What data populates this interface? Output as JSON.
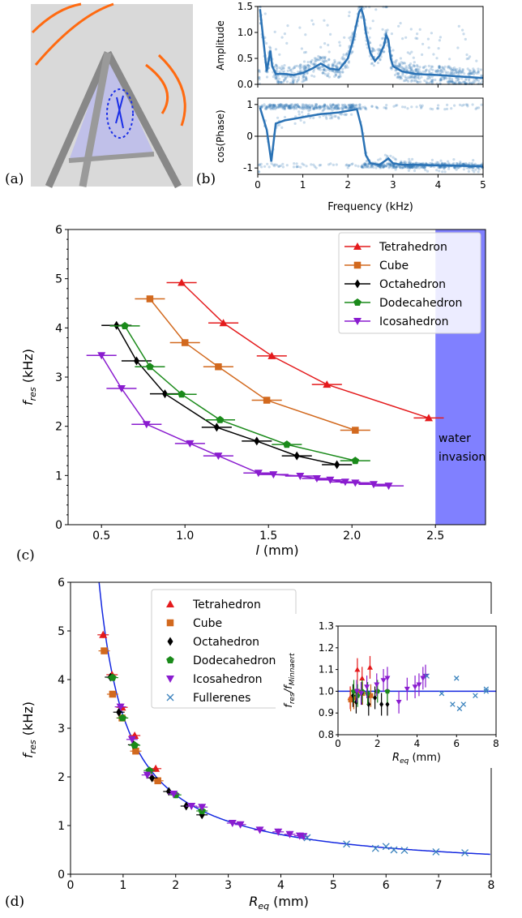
{
  "panel_labels": {
    "a": "(a)",
    "b": "(b)",
    "c": "(c)",
    "d": "(d)"
  },
  "colors": {
    "tetrahedron": "#e41a1c",
    "cube": "#d2691e",
    "octahedron": "#000000",
    "dodecahedron": "#1a8a1a",
    "icosahedron": "#8a1ccf",
    "fullerenes": "#3b83bd",
    "fit": "#1428e0",
    "water_band": "#8080ff",
    "fft_points": "#2a72b5"
  },
  "chart_data": [
    {
      "id": "b-top",
      "type": "scatter",
      "xlabel": "",
      "ylabel": "Amplitude",
      "xlim": [
        0,
        5
      ],
      "ylim": [
        0,
        1.5
      ],
      "yticks": [
        "0.0",
        "0.5",
        "1.0",
        "1.5"
      ],
      "xticks": [
        "0",
        "1",
        "2",
        "3",
        "4",
        "5"
      ],
      "series": [
        {
          "values_x": [
            0.05,
            0.2,
            0.28,
            0.32,
            0.4,
            0.6,
            0.8,
            1.0,
            1.2,
            1.3,
            1.4,
            1.5,
            1.6,
            1.8,
            2.0,
            2.1,
            2.2,
            2.25,
            2.3,
            2.35,
            2.4,
            2.5,
            2.6,
            2.7,
            2.8,
            2.85,
            2.9,
            2.95,
            3.0,
            3.2,
            3.5,
            4.0,
            4.5,
            5.0
          ],
          "values_y": [
            1.45,
            0.25,
            0.65,
            0.35,
            0.2,
            0.2,
            0.18,
            0.22,
            0.3,
            0.35,
            0.4,
            0.35,
            0.3,
            0.28,
            0.5,
            0.8,
            1.2,
            1.4,
            1.45,
            1.3,
            1.0,
            0.6,
            0.45,
            0.55,
            0.75,
            0.95,
            0.85,
            0.5,
            0.35,
            0.25,
            0.2,
            0.18,
            0.15,
            0.12
          ]
        }
      ]
    },
    {
      "id": "b-bottom",
      "type": "scatter",
      "xlabel": "Frequency (kHz)",
      "ylabel": "cos(Phase)",
      "xlim": [
        0,
        5
      ],
      "ylim": [
        -1.2,
        1.2
      ],
      "yticks": [
        "-1",
        "0",
        "1"
      ],
      "xticks": [
        "0",
        "1",
        "2",
        "3",
        "4",
        "5"
      ],
      "series": [
        {
          "values_x": [
            0.05,
            0.2,
            0.3,
            0.4,
            0.6,
            0.8,
            1.0,
            1.2,
            1.4,
            1.6,
            1.8,
            2.0,
            2.2,
            2.3,
            2.4,
            2.5,
            2.7,
            2.9,
            3.0,
            3.2,
            3.5,
            4.0,
            4.5,
            5.0
          ],
          "values_y": [
            0.9,
            0.2,
            -0.8,
            0.4,
            0.5,
            0.55,
            0.6,
            0.65,
            0.7,
            0.72,
            0.75,
            0.8,
            0.85,
            0.3,
            -0.6,
            -0.85,
            -0.9,
            -0.7,
            -0.85,
            -0.9,
            -0.9,
            -0.92,
            -0.93,
            -0.95
          ]
        }
      ]
    },
    {
      "id": "c",
      "type": "line",
      "xlabel": "l (mm)",
      "ylabel": "f_res (kHz)",
      "xlim": [
        0.3,
        2.8
      ],
      "ylim": [
        0,
        6
      ],
      "xticks": [
        0.5,
        1.0,
        1.5,
        2.0,
        2.5
      ],
      "xtick_labels": [
        "0.5",
        "1.0",
        "1.5",
        "2.0",
        "2.5"
      ],
      "yticks": [
        0,
        1,
        2,
        3,
        4,
        5,
        6
      ],
      "band": {
        "x_from": 2.5,
        "x_to": 2.8,
        "label_line1": "water",
        "label_line2": "invasion"
      },
      "legend_position": "top-right",
      "series": [
        {
          "name": "Tetrahedron",
          "marker": "triangle-up",
          "color_key": "tetrahedron",
          "x": [
            0.98,
            1.23,
            1.52,
            1.85,
            2.46
          ],
          "y": [
            4.92,
            4.1,
            3.43,
            2.85,
            2.17
          ],
          "xerr": 0.09
        },
        {
          "name": "Cube",
          "marker": "square",
          "color_key": "cube",
          "x": [
            0.79,
            1.0,
            1.2,
            1.49,
            2.02
          ],
          "y": [
            4.59,
            3.7,
            3.21,
            2.53,
            1.92
          ],
          "xerr": 0.09
        },
        {
          "name": "Octahedron",
          "marker": "diamond",
          "color_key": "octahedron",
          "x": [
            0.59,
            0.71,
            0.88,
            1.19,
            1.43,
            1.67,
            1.91
          ],
          "y": [
            4.05,
            3.33,
            2.66,
            1.98,
            1.7,
            1.4,
            1.22
          ],
          "xerr": 0.09
        },
        {
          "name": "Dodecahedron",
          "marker": "pentagon",
          "color_key": "dodecahedron",
          "x": [
            0.64,
            0.79,
            0.98,
            1.21,
            1.61,
            2.02
          ],
          "y": [
            4.04,
            3.21,
            2.65,
            2.13,
            1.63,
            1.3
          ],
          "xerr": 0.09
        },
        {
          "name": "Icosahedron",
          "marker": "triangle-down",
          "color_key": "icosahedron",
          "x": [
            0.5,
            0.62,
            0.77,
            1.03,
            1.2,
            1.44,
            1.53,
            1.69,
            1.79,
            1.87,
            1.96,
            2.02,
            2.13,
            2.22
          ],
          "y": [
            3.44,
            2.77,
            2.04,
            1.65,
            1.4,
            1.05,
            1.02,
            0.99,
            0.94,
            0.91,
            0.87,
            0.85,
            0.82,
            0.79
          ],
          "xerr": 0.09
        }
      ]
    },
    {
      "id": "d",
      "type": "scatter",
      "xlabel": "R_eq (mm)",
      "ylabel": "f_res (kHz)",
      "xlim": [
        0,
        8
      ],
      "ylim": [
        0,
        6
      ],
      "xticks": [
        0,
        1,
        2,
        3,
        4,
        5,
        6,
        7,
        8
      ],
      "yticks": [
        0,
        1,
        2,
        3,
        4,
        5,
        6
      ],
      "fit": {
        "type": "minnaert",
        "k": 3.26
      },
      "legend_position": "top-left",
      "series": [
        {
          "name": "Tetrahedron",
          "marker": "triangle-up",
          "color_key": "tetrahedron",
          "x": [
            0.62,
            0.79,
            0.98,
            1.22,
            1.62
          ],
          "y": [
            4.92,
            4.1,
            3.43,
            2.85,
            2.17
          ]
        },
        {
          "name": "Cube",
          "marker": "square",
          "color_key": "cube",
          "x": [
            0.64,
            0.8,
            0.98,
            1.24,
            1.66
          ],
          "y": [
            4.59,
            3.7,
            3.21,
            2.53,
            1.92
          ]
        },
        {
          "name": "Octahedron",
          "marker": "diamond",
          "color_key": "octahedron",
          "x": [
            0.76,
            0.92,
            1.2,
            1.55,
            1.87,
            2.2,
            2.5
          ],
          "y": [
            4.05,
            3.33,
            2.66,
            1.98,
            1.7,
            1.4,
            1.22
          ]
        },
        {
          "name": "Dodecahedron",
          "marker": "pentagon",
          "color_key": "dodecahedron",
          "x": [
            0.8,
            0.99,
            1.22,
            1.5,
            2.0,
            2.5
          ],
          "y": [
            4.04,
            3.21,
            2.65,
            2.13,
            1.63,
            1.3
          ]
        },
        {
          "name": "Icosahedron",
          "marker": "triangle-down",
          "color_key": "icosahedron",
          "x": [
            0.95,
            1.17,
            1.46,
            1.96,
            2.3,
            2.5,
            3.08,
            3.23,
            3.6,
            3.95,
            4.17,
            4.36,
            4.43
          ],
          "y": [
            3.44,
            2.77,
            2.04,
            1.65,
            1.4,
            1.38,
            1.05,
            1.02,
            0.91,
            0.87,
            0.82,
            0.79,
            0.78
          ]
        },
        {
          "name": "Fullerenes",
          "marker": "x",
          "color_key": "fullerenes",
          "x": [
            4.5,
            5.25,
            5.8,
            6.0,
            6.15,
            6.35,
            6.95,
            7.5
          ],
          "y": [
            0.75,
            0.62,
            0.53,
            0.57,
            0.5,
            0.49,
            0.46,
            0.44
          ]
        }
      ]
    },
    {
      "id": "d-inset",
      "type": "scatter",
      "xlabel": "R_eq (mm)",
      "ylabel": "f_res/f_Minnaert",
      "xlim": [
        0,
        8
      ],
      "ylim": [
        0.8,
        1.3
      ],
      "xticks": [
        0,
        2,
        4,
        6,
        8
      ],
      "yticks": [
        "0.8",
        "0.9",
        "1.0",
        "1.1",
        "1.2",
        "1.3"
      ],
      "reference_line": 1.0,
      "series": [
        {
          "name": "Tetrahedron",
          "marker": "triangle-up",
          "color_key": "tetrahedron",
          "x": [
            0.62,
            0.79,
            0.98,
            1.22,
            1.62
          ],
          "y": [
            0.97,
            0.98,
            1.1,
            1.06,
            1.11
          ]
        },
        {
          "name": "Cube",
          "marker": "square",
          "color_key": "cube",
          "x": [
            0.64,
            0.8,
            0.98,
            1.24,
            1.66
          ],
          "y": [
            0.96,
            0.97,
            1.0,
            0.99,
            0.98
          ]
        },
        {
          "name": "Octahedron",
          "marker": "diamond",
          "color_key": "octahedron",
          "x": [
            0.76,
            0.92,
            1.2,
            1.55,
            1.87,
            2.2,
            2.5
          ],
          "y": [
            0.98,
            0.95,
            0.99,
            0.94,
            0.97,
            0.94,
            0.94
          ]
        },
        {
          "name": "Dodecahedron",
          "marker": "pentagon",
          "color_key": "dodecahedron",
          "x": [
            0.8,
            0.99,
            1.22,
            1.5,
            2.0,
            2.5
          ],
          "y": [
            1.0,
            0.98,
            1.0,
            0.99,
            1.0,
            1.0
          ]
        },
        {
          "name": "Icosahedron",
          "marker": "triangle-down",
          "color_key": "icosahedron",
          "x": [
            0.95,
            1.17,
            1.46,
            1.96,
            2.3,
            2.5,
            3.08,
            3.5,
            3.9,
            4.1,
            4.3,
            4.43
          ],
          "y": [
            1.0,
            0.99,
            1.02,
            1.03,
            1.05,
            1.06,
            0.95,
            1.01,
            1.02,
            1.03,
            1.06,
            1.07
          ]
        },
        {
          "name": "Fullerenes",
          "marker": "x",
          "color_key": "fullerenes",
          "x": [
            4.5,
            5.25,
            5.8,
            6.0,
            6.15,
            6.35,
            6.95,
            7.5,
            7.5
          ],
          "y": [
            1.07,
            0.99,
            0.94,
            1.06,
            0.92,
            0.94,
            0.98,
            1.0,
            1.01
          ]
        }
      ]
    }
  ]
}
